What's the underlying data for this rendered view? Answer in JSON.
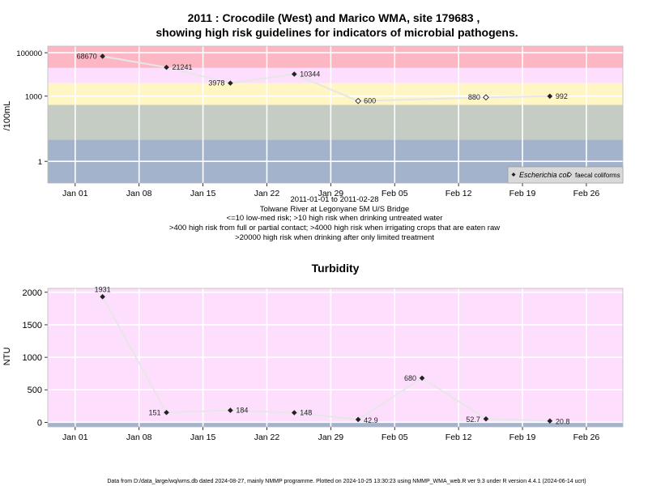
{
  "title_line1": "2011 : Crocodile (West) and Marico WMA, site 179683 ,",
  "title_line2": "showing high risk guidelines for indicators of microbial pathogens.",
  "footer": "Data from D:/data_large/wq/wms.db dated 2024-08-27, mainly NMMP programme. Plotted on 2024-10-25 13:30:23 using NMMP_WMA_web.R ver 9.3 under R version 4.4.1 (2024-06-14 ucrt)",
  "chart_data": [
    {
      "type": "line",
      "title": "",
      "ylabel": "/100mL",
      "xlabel_lines": [
        "2011-01-01 to 2011-02-28",
        "Tolwane River at Legonyane 5M U/S Bridge",
        "<=10 low-med risk; >10 high risk when drinking untreated water",
        ">400 high risk from full or partial contact; >4000 high risk when irrigating crops that are eaten raw",
        ">20000 high risk when drinking after only limited treatment"
      ],
      "y_scale": "log",
      "ylim": [
        0.1,
        200000
      ],
      "xlim": [
        "2010-12-29",
        "2011-03-02"
      ],
      "x_ticks": [
        "2011-01-01",
        "2011-01-08",
        "2011-01-15",
        "2011-01-22",
        "2011-01-29",
        "2011-02-05",
        "2011-02-12",
        "2011-02-19",
        "2011-02-26"
      ],
      "x_tick_labels": [
        "Jan 01",
        "Jan 08",
        "Jan 15",
        "Jan 22",
        "Jan 29",
        "Feb 05",
        "Feb 12",
        "Feb 19",
        "Feb 26"
      ],
      "y_ticks": [
        1,
        1000,
        100000
      ],
      "y_tick_labels": [
        "1",
        "1000",
        "100000"
      ],
      "bands": [
        {
          "from": 0.1,
          "to": 10,
          "color": "#a3b3cc"
        },
        {
          "from": 10,
          "to": 400,
          "color": "#c4ccc4"
        },
        {
          "from": 400,
          "to": 4000,
          "color": "#fff6c4"
        },
        {
          "from": 4000,
          "to": 20000,
          "color": "#fddffd"
        },
        {
          "from": 20000,
          "to": 200000,
          "color": "#fdb6c4"
        }
      ],
      "series": [
        {
          "name": "Escherichia coli",
          "marker": "filled-diamond",
          "points": [
            {
              "x": "2011-01-04",
              "y": 68670,
              "label": "68670",
              "label_side": "left"
            },
            {
              "x": "2011-01-11",
              "y": 21241,
              "label": "21241",
              "label_side": "right"
            },
            {
              "x": "2011-01-18",
              "y": 3978,
              "label": "3978",
              "label_side": "left"
            },
            {
              "x": "2011-01-25",
              "y": 10344,
              "label": "10344",
              "label_side": "right"
            },
            {
              "x": "2011-02-22",
              "y": 992,
              "label": "992",
              "label_side": "right"
            }
          ]
        },
        {
          "name": "faecal coliforms",
          "marker": "open-diamond",
          "points": [
            {
              "x": "2011-02-01",
              "y": 600,
              "label": "600",
              "label_side": "right"
            },
            {
              "x": "2011-02-15",
              "y": 880,
              "label": "880",
              "label_side": "left"
            }
          ]
        }
      ],
      "legend": {
        "position": "bottom-right",
        "entries": [
          "Escherichia coli",
          "faecal coliforms"
        ]
      }
    },
    {
      "type": "line",
      "title": "Turbidity",
      "ylabel": "NTU",
      "xlabel": "",
      "ylim": [
        -70,
        2060
      ],
      "xlim": [
        "2010-12-29",
        "2011-03-02"
      ],
      "x_ticks": [
        "2011-01-01",
        "2011-01-08",
        "2011-01-15",
        "2011-01-22",
        "2011-01-29",
        "2011-02-05",
        "2011-02-12",
        "2011-02-19",
        "2011-02-26"
      ],
      "x_tick_labels": [
        "Jan 01",
        "Jan 08",
        "Jan 15",
        "Jan 22",
        "Jan 29",
        "Feb 05",
        "Feb 12",
        "Feb 19",
        "Feb 26"
      ],
      "y_ticks": [
        0,
        500,
        1000,
        1500,
        2000
      ],
      "y_tick_labels": [
        "0",
        "500",
        "1000",
        "1500",
        "2000"
      ],
      "bands": [
        {
          "from": -70,
          "to": 0,
          "color": "#a3b3cc"
        },
        {
          "from": 0,
          "to": 2060,
          "color": "#fddffd"
        }
      ],
      "series": [
        {
          "name": "",
          "marker": "filled-diamond",
          "points": [
            {
              "x": "2011-01-04",
              "y": 1931,
              "label": "1931",
              "label_side": "above"
            },
            {
              "x": "2011-01-11",
              "y": 151,
              "label": "151",
              "label_side": "left"
            },
            {
              "x": "2011-01-18",
              "y": 184,
              "label": "184",
              "label_side": "right"
            },
            {
              "x": "2011-01-25",
              "y": 148,
              "label": "148",
              "label_side": "right"
            },
            {
              "x": "2011-02-01",
              "y": 42.9,
              "label": "42.9",
              "label_side": "right"
            },
            {
              "x": "2011-02-08",
              "y": 680,
              "label": "680",
              "label_side": "left"
            },
            {
              "x": "2011-02-15",
              "y": 52.7,
              "label": "52.7",
              "label_side": "left"
            },
            {
              "x": "2011-02-22",
              "y": 20.8,
              "label": "20.8",
              "label_side": "right"
            }
          ]
        }
      ]
    }
  ]
}
